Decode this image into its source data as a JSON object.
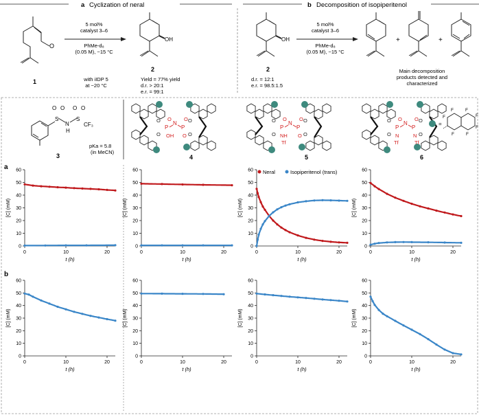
{
  "header": {
    "panel_a": {
      "letter": "a",
      "title": "Cyclization of neral"
    },
    "panel_b": {
      "letter": "b",
      "title": "Decomposition of isopiperitenol"
    }
  },
  "scheme_a": {
    "conditions": [
      "5 mol%",
      "catalyst 3–6",
      "PhMe-d₈",
      "(0.05 M), −15 °C"
    ],
    "sm_label": "1",
    "product_label": "2",
    "product_oh": "OH",
    "sm_o": "O",
    "note": [
      "with iIDP 5",
      "at −20 °C"
    ],
    "results": [
      "Yield = 77% yield",
      "d.r. > 20:1",
      "e.r. = 99:1"
    ]
  },
  "scheme_b": {
    "sm_label": "2",
    "sm_oh": "OH",
    "sm_stats": [
      "d.r. = 12:1",
      "e.r. = 98.5:1.5"
    ],
    "conditions": [
      "5 mol%",
      "catalyst 3–6",
      "PhMe-d₈",
      "(0.05 M), −15 °C"
    ],
    "plus": "+",
    "caption": [
      "Main decomposition",
      "products detected and",
      "characterized"
    ]
  },
  "catalysts": {
    "c3": {
      "label": "3",
      "pka": "pKa = 5.8",
      "solvent": "(in MeCN)",
      "atoms": [
        "O",
        "O",
        "O",
        "O",
        "S",
        "S",
        "N",
        "H",
        "CF₃"
      ]
    },
    "c4": {
      "label": "4",
      "core": [
        "P",
        "N",
        "P",
        "O",
        "O",
        "O",
        "O",
        "O",
        "O",
        "OH",
        "O"
      ]
    },
    "c5": {
      "label": "5",
      "core": [
        "P",
        "N",
        "P",
        "O",
        "O",
        "O",
        "O",
        "O",
        "O",
        "NH",
        "Tf",
        "O"
      ]
    },
    "c6": {
      "label": "6",
      "core": [
        "P",
        "N",
        "P",
        "O",
        "O",
        "O",
        "O",
        "O",
        "O",
        "N",
        "Tf",
        "N",
        "Tf"
      ]
    },
    "substituent_eq": "=",
    "fluorines": [
      "F",
      "F",
      "F",
      "F",
      "F",
      "F",
      "F"
    ]
  },
  "legend": {
    "neral": "Neral",
    "isopiperitenol": "Isopiperitenol (trans)"
  },
  "row_labels": {
    "a": "a",
    "b": "b"
  },
  "axis": {
    "xlabel": "t (h)",
    "ylabel": "[C] (mM)"
  },
  "colors": {
    "neral": "#c0191c",
    "isopiperitenol": "#3a86c8",
    "teal": "#3e8a7e",
    "red_core": "#d32020"
  },
  "chart_data": [
    {
      "type": "scatter",
      "row": "a",
      "catalyst": "3",
      "xlim": [
        0,
        22
      ],
      "ylim": [
        0,
        60
      ],
      "xticks": [
        0,
        10,
        20
      ],
      "yticks": [
        0,
        10,
        20,
        30,
        40,
        50,
        60
      ],
      "series": [
        {
          "name": "Neral",
          "x": [
            0,
            2,
            4,
            6,
            8,
            10,
            12,
            14,
            16,
            18,
            20,
            22
          ],
          "y": [
            48.5,
            47.5,
            47,
            46.6,
            46.2,
            45.9,
            45.5,
            45.2,
            44.9,
            44.6,
            44.1,
            43.7
          ]
        },
        {
          "name": "Isopiperitenol (trans)",
          "x": [
            0,
            5,
            10,
            15,
            22
          ],
          "y": [
            0.3,
            0.4,
            0.5,
            0.5,
            0.6
          ]
        }
      ]
    },
    {
      "type": "scatter",
      "row": "a",
      "catalyst": "4",
      "xlim": [
        0,
        22
      ],
      "ylim": [
        0,
        60
      ],
      "xticks": [
        0,
        10,
        20
      ],
      "yticks": [
        0,
        10,
        20,
        30,
        40,
        50,
        60
      ],
      "series": [
        {
          "name": "Neral",
          "x": [
            0,
            5,
            10,
            15,
            22
          ],
          "y": [
            49,
            48.7,
            48.4,
            48.1,
            47.8
          ]
        },
        {
          "name": "Isopiperitenol (trans)",
          "x": [
            0,
            5,
            10,
            15,
            22
          ],
          "y": [
            0.5,
            0.5,
            0.5,
            0.5,
            0.5
          ]
        }
      ]
    },
    {
      "type": "scatter",
      "row": "a",
      "catalyst": "5",
      "xlim": [
        0,
        22
      ],
      "ylim": [
        0,
        60
      ],
      "xticks": [
        0,
        10,
        20
      ],
      "yticks": [
        0,
        10,
        20,
        30,
        40,
        50,
        60
      ],
      "series": [
        {
          "name": "Neral",
          "x": [
            0,
            0.25,
            0.5,
            1,
            1.5,
            2,
            3,
            4,
            5,
            6,
            7,
            8,
            10,
            12,
            14,
            16,
            18,
            20,
            22
          ],
          "y": [
            45,
            41.5,
            38.5,
            34.5,
            31,
            28.5,
            23.8,
            20,
            17,
            14.5,
            12.5,
            10.8,
            8.3,
            6.4,
            5,
            4,
            3.3,
            2.8,
            2.5
          ]
        },
        {
          "name": "Isopiperitenol (trans)",
          "x": [
            0,
            0.25,
            0.5,
            1,
            1.5,
            2,
            3,
            4,
            5,
            6,
            7,
            8,
            10,
            12,
            14,
            16,
            18,
            20,
            22
          ],
          "y": [
            0,
            5,
            9,
            13.5,
            17,
            19.5,
            23.5,
            26.5,
            28.8,
            30.5,
            31.8,
            32.8,
            34.3,
            35.2,
            35.8,
            36,
            35.9,
            35.7,
            35.5
          ]
        }
      ]
    },
    {
      "type": "scatter",
      "row": "a",
      "catalyst": "6",
      "xlim": [
        0,
        22
      ],
      "ylim": [
        0,
        60
      ],
      "xticks": [
        0,
        10,
        20
      ],
      "yticks": [
        0,
        10,
        20,
        30,
        40,
        50,
        60
      ],
      "series": [
        {
          "name": "Neral",
          "x": [
            0,
            1,
            2,
            4,
            6,
            8,
            10,
            12,
            14,
            16,
            18,
            20,
            22
          ],
          "y": [
            49.5,
            47,
            44.8,
            41,
            38,
            35.5,
            33.2,
            31.2,
            29.5,
            27.8,
            26.3,
            24.8,
            23.5
          ]
        },
        {
          "name": "Isopiperitenol (trans)",
          "x": [
            0,
            1,
            2,
            4,
            6,
            8,
            10,
            14,
            18,
            22
          ],
          "y": [
            1,
            1.8,
            2.3,
            2.8,
            3,
            3.1,
            3,
            2.9,
            2.7,
            2.5
          ]
        }
      ]
    },
    {
      "type": "scatter",
      "row": "b",
      "catalyst": "3",
      "xlim": [
        0,
        22
      ],
      "ylim": [
        0,
        60
      ],
      "xticks": [
        0,
        10,
        20
      ],
      "yticks": [
        0,
        10,
        20,
        30,
        40,
        50,
        60
      ],
      "series": [
        {
          "name": "Isopiperitenol (trans)",
          "x": [
            0,
            1,
            2,
            4,
            6,
            8,
            10,
            12,
            14,
            16,
            18,
            20,
            22
          ],
          "y": [
            49.5,
            48.7,
            47,
            44,
            41.5,
            39,
            37,
            35,
            33.4,
            31.8,
            30.5,
            29.2,
            28
          ]
        }
      ]
    },
    {
      "type": "scatter",
      "row": "b",
      "catalyst": "4",
      "xlim": [
        0,
        22
      ],
      "ylim": [
        0,
        60
      ],
      "xticks": [
        0,
        10,
        20
      ],
      "yticks": [
        0,
        10,
        20,
        30,
        40,
        50,
        60
      ],
      "series": [
        {
          "name": "Isopiperitenol (trans)",
          "x": [
            0,
            5,
            10,
            15,
            20
          ],
          "y": [
            49.5,
            49.4,
            49.3,
            49.2,
            49
          ]
        }
      ]
    },
    {
      "type": "scatter",
      "row": "b",
      "catalyst": "5",
      "xlim": [
        0,
        22
      ],
      "ylim": [
        0,
        60
      ],
      "xticks": [
        0,
        10,
        20
      ],
      "yticks": [
        0,
        10,
        20,
        30,
        40,
        50,
        60
      ],
      "series": [
        {
          "name": "Isopiperitenol (trans)",
          "x": [
            0,
            2,
            4,
            6,
            8,
            10,
            12,
            14,
            16,
            18,
            20,
            22
          ],
          "y": [
            49.5,
            48.8,
            48.2,
            47.6,
            47,
            46.5,
            46,
            45.4,
            44.8,
            44.3,
            43.8,
            43.2
          ]
        }
      ]
    },
    {
      "type": "scatter",
      "row": "b",
      "catalyst": "6",
      "xlim": [
        0,
        22
      ],
      "ylim": [
        0,
        60
      ],
      "xticks": [
        0,
        10,
        20
      ],
      "yticks": [
        0,
        10,
        20,
        30,
        40,
        50,
        60
      ],
      "series": [
        {
          "name": "Isopiperitenol (trans)",
          "x": [
            0,
            0.5,
            1,
            2,
            3,
            4,
            6,
            8,
            10,
            12,
            14,
            16,
            18,
            20,
            22
          ],
          "y": [
            47,
            43.5,
            40.5,
            36.5,
            33.5,
            31.5,
            27.8,
            24.2,
            20.8,
            17.3,
            13.3,
            9,
            5,
            2.2,
            1.2
          ]
        }
      ]
    }
  ]
}
